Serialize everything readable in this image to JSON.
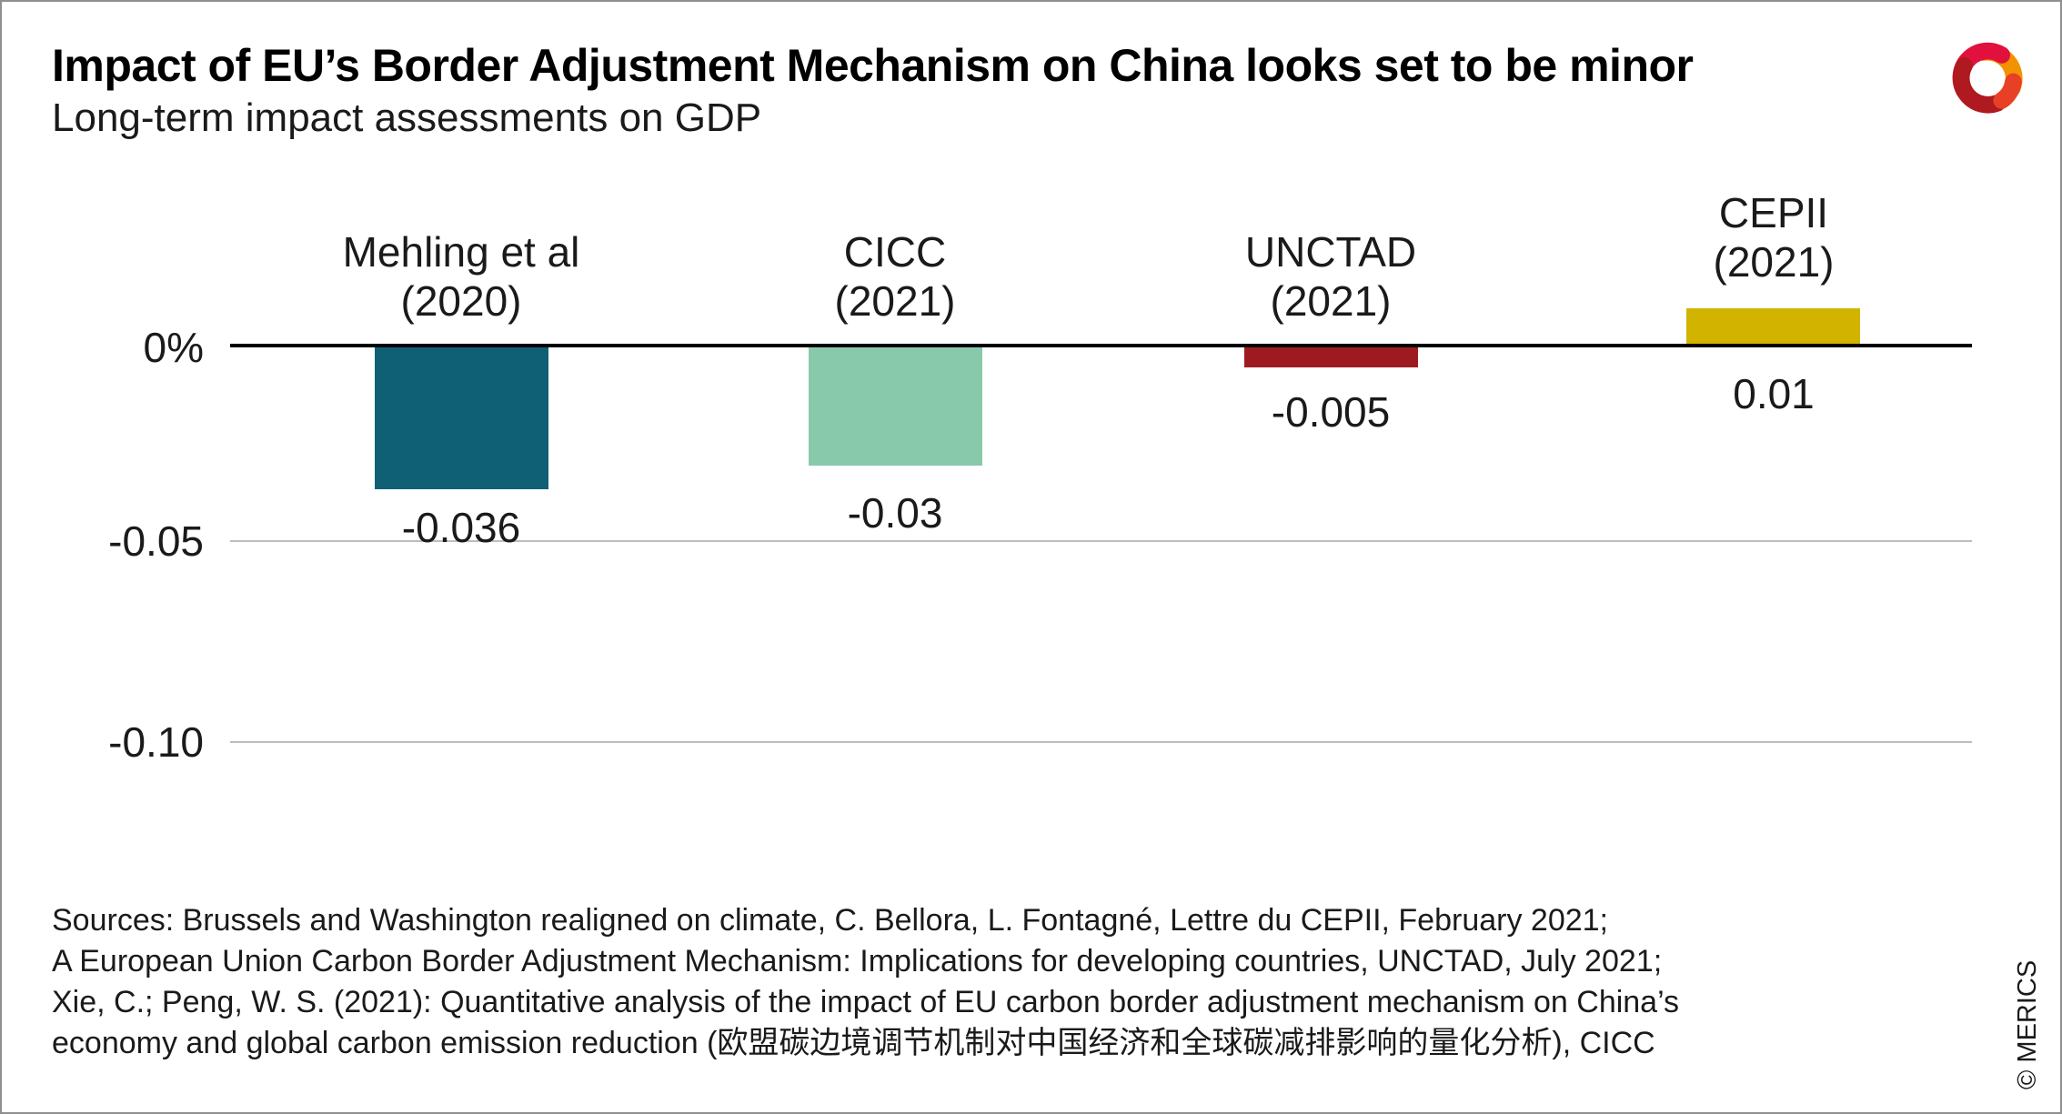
{
  "header": {
    "title": "Impact of EU’s Border Adjustment Mechanism on China looks set to be minor",
    "subtitle": "Long-term impact assessments on GDP"
  },
  "chart_data": {
    "type": "bar",
    "title": "Impact of EU’s Border Adjustment Mechanism on China looks set to be minor",
    "subtitle": "Long-term impact assessments on GDP",
    "categories": [
      "Mehling et al (2020)",
      "CICC (2021)",
      "UNCTAD (2021)",
      "CEPII (2021)"
    ],
    "values": [
      -0.036,
      -0.03,
      -0.005,
      0.01
    ],
    "xlabel": "",
    "ylabel": "",
    "ylim": [
      -0.12,
      0.02
    ],
    "grid": "horizontal-gridlines-at--0.05-and--0.10",
    "legend": "none",
    "yticks": [
      {
        "label": "0%",
        "value": 0
      },
      {
        "label": "-0.05",
        "value": -0.05
      },
      {
        "label": "-0.10",
        "value": -0.1
      }
    ],
    "bars": [
      {
        "label_line1": "Mehling et al",
        "label_line2": "(2020)",
        "value": -0.036,
        "value_label": "-0.036",
        "color": "#106075"
      },
      {
        "label_line1": "CICC",
        "label_line2": "(2021)",
        "value": -0.03,
        "value_label": "-0.03",
        "color": "#88C9AC"
      },
      {
        "label_line1": "UNCTAD",
        "label_line2": "(2021)",
        "value": -0.005,
        "value_label": "-0.005",
        "color": "#9D1B20"
      },
      {
        "label_line1": "CEPII",
        "label_line2": "(2021)",
        "value": 0.01,
        "value_label": "0.01",
        "color": "#D2B400"
      }
    ]
  },
  "footer": {
    "sources_lines": [
      "Sources: Brussels and Washington realigned on climate, C. Bellora, L. Fontagné, Lettre du CEPII, February 2021;",
      "A European Union Carbon Border Adjustment Mechanism: Implications for developing countries, UNCTAD, July 2021;",
      "Xie, C.; Peng, W. S. (2021): Quantitative analysis of the impact of EU carbon border adjustment mechanism on China’s",
      "economy and global carbon emission reduction (欧盟碳边境调节机制对中国经济和全球碳减排影响的量化分析), CICC"
    ],
    "copyright": "© MERICS"
  },
  "colors": {
    "bar_teal": "#106075",
    "bar_green": "#88C9AC",
    "bar_red": "#9D1B20",
    "bar_yellow": "#D2B400",
    "axis_line": "#000000",
    "gridline": "#BDBDBD",
    "text": "#1A1A1A",
    "frame_border": "#8F8F8F",
    "logo_orange": "#F39200",
    "logo_crimson": "#E2103C",
    "logo_dark_red": "#AE1A1F",
    "logo_red": "#E74024"
  }
}
